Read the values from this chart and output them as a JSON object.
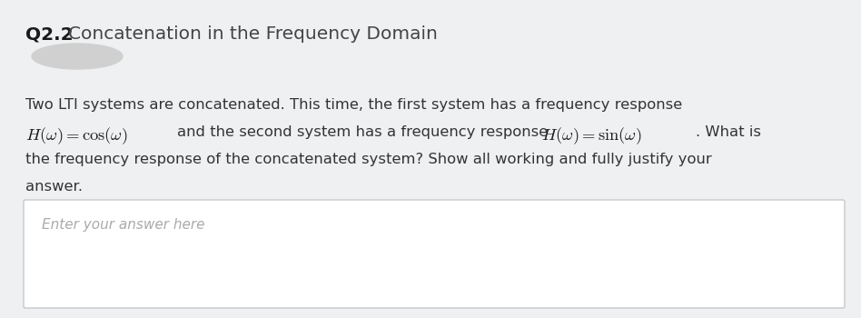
{
  "background_color": "#eef0f2",
  "title_bold": "Q2.2",
  "title_normal": "Concatenation in the Frequency Domain",
  "title_bold_color": "#1a1a1a",
  "title_normal_color": "#444444",
  "title_fontsize": 14.5,
  "body_text_color": "#333333",
  "body_fontsize": 11.8,
  "line1": "Two LTI systems are concatenated. This time, the first system has a frequency response",
  "line3": "the frequency response of the concatenated system? Show all working and fully justify your",
  "line4": "answer.",
  "answer_box_color": "#ffffff",
  "answer_box_edge": "#c8c8c8",
  "answer_placeholder": "Enter your answer here",
  "answer_placeholder_color": "#aaaaaa",
  "answer_placeholder_fontsize": 11.0,
  "avatar_color": "#d0d0d0",
  "math_color": "#1a1a1a"
}
